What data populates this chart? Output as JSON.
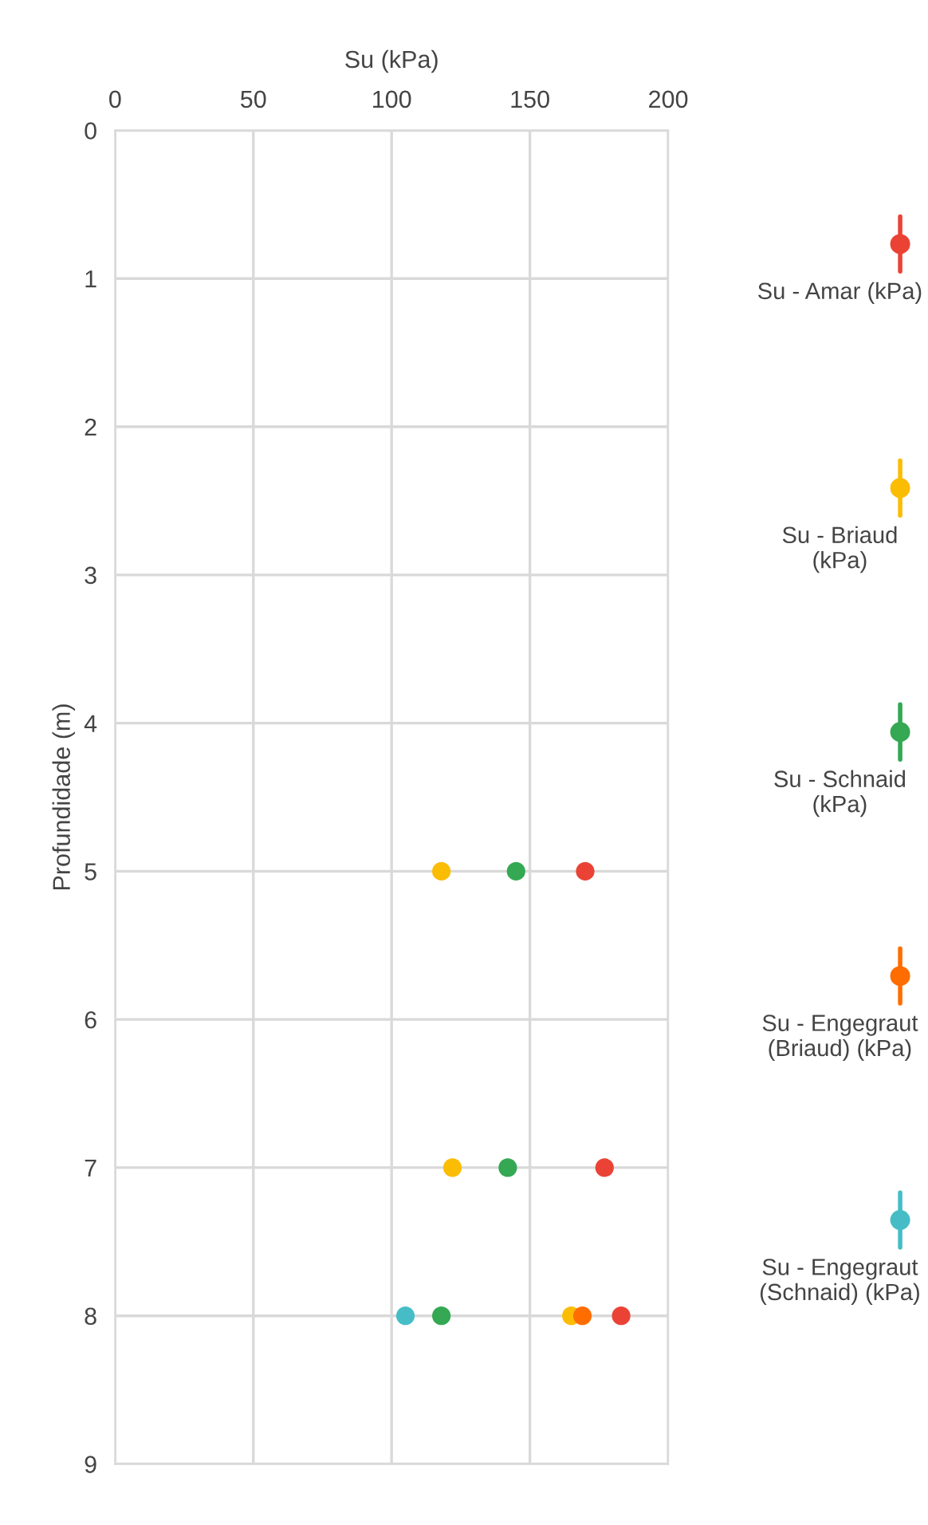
{
  "chart_data": {
    "type": "scatter",
    "xlabel": "Su (kPa)",
    "ylabel": "Profundidade (m)",
    "xlim": [
      0,
      200
    ],
    "xticks": [
      0,
      50,
      100,
      150,
      200
    ],
    "ylim": [
      9,
      0
    ],
    "yticks": [
      0,
      1,
      2,
      3,
      4,
      5,
      6,
      7,
      8,
      9
    ],
    "grid": true,
    "legend": "right",
    "marker": "circle",
    "series": [
      {
        "name": "Su - Amar (kPa)",
        "color": "#ea4335",
        "x": [
          170,
          177,
          183
        ],
        "values": [
          5,
          7,
          8
        ]
      },
      {
        "name": "Su - Briaud (kPa)",
        "color": "#fbbc04",
        "x": [
          118,
          122,
          165
        ],
        "values": [
          5,
          7,
          8
        ]
      },
      {
        "name": "Su - Schnaid (kPa)",
        "color": "#34a853",
        "x": [
          145,
          142,
          118
        ],
        "values": [
          5,
          7,
          8
        ]
      },
      {
        "name": "Su - Engegraut (Briaud) (kPa)",
        "color": "#ff6d01",
        "x": [
          169
        ],
        "values": [
          8
        ]
      },
      {
        "name": "Su - Engegraut (Schnaid) (kPa)",
        "color": "#46bdc6",
        "x": [
          105
        ],
        "values": [
          8
        ]
      }
    ]
  }
}
